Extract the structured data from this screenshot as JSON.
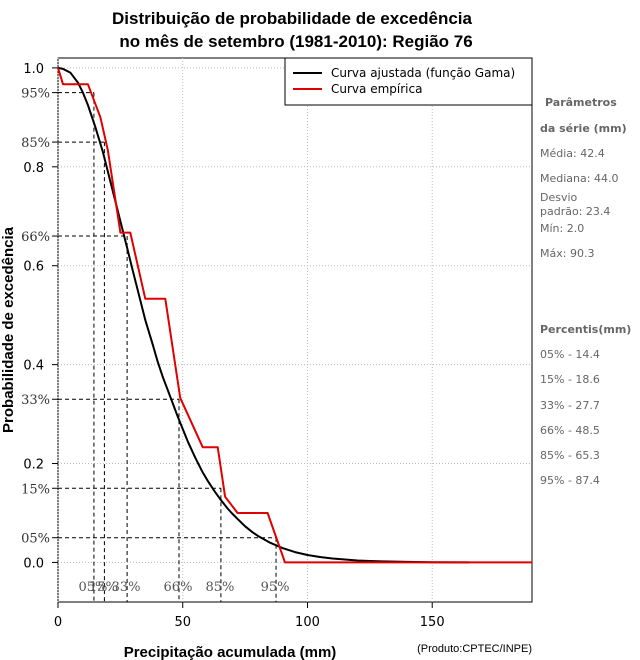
{
  "chart_data": {
    "type": "line",
    "title_line1": "Distribuição de probabilidade de excedência",
    "title_line2": "no mês de setembro (1981-2010): Região 76",
    "xlabel": "Precipitação acumulada (mm)",
    "ylabel": "Probabilidade de excedência",
    "credit": "(Produto:CPTEC/INPE)",
    "xlim": [
      0,
      190
    ],
    "ylim": [
      -0.08,
      1.02
    ],
    "x_ticks": [
      0,
      50,
      100,
      150
    ],
    "y_ticks": [
      0.0,
      0.2,
      0.4,
      0.6,
      0.8,
      1.0
    ],
    "y_tick_labels": [
      "0.0",
      "0.2",
      "0.4",
      "0.6",
      "0.8",
      "1.0"
    ],
    "percentile_y_marks": [
      {
        "label": "95%",
        "y": 0.95
      },
      {
        "label": "85%",
        "y": 0.85
      },
      {
        "label": "66%",
        "y": 0.66
      },
      {
        "label": "33%",
        "y": 0.33
      },
      {
        "label": "15%",
        "y": 0.15
      },
      {
        "label": "05%",
        "y": 0.05
      }
    ],
    "percentile_x_marks": [
      {
        "label": "05%",
        "prob": 0.95,
        "x": 14.4
      },
      {
        "label": "15%",
        "prob": 0.85,
        "x": 18.6
      },
      {
        "label": "33%",
        "prob": 0.66,
        "x": 27.7
      },
      {
        "label": "66%",
        "prob": 0.33,
        "x": 48.5
      },
      {
        "label": "85%",
        "prob": 0.15,
        "x": 65.3
      },
      {
        "label": "95%",
        "prob": 0.05,
        "x": 87.4
      }
    ],
    "series": [
      {
        "name": "Curva ajustada (função Gama)",
        "color": "#000000",
        "x": [
          0,
          2,
          5,
          8,
          10,
          12,
          15,
          18,
          20,
          22,
          25,
          28,
          30,
          33,
          35,
          38,
          40,
          42,
          45,
          48,
          50,
          52,
          55,
          58,
          60,
          63,
          65,
          68,
          70,
          73,
          75,
          78,
          80,
          85,
          90,
          95,
          100,
          105,
          110,
          115,
          120,
          125,
          130,
          140,
          150,
          165
        ],
        "y": [
          1.0,
          0.998,
          0.99,
          0.97,
          0.95,
          0.925,
          0.88,
          0.83,
          0.79,
          0.75,
          0.69,
          0.63,
          0.59,
          0.53,
          0.49,
          0.44,
          0.405,
          0.375,
          0.335,
          0.295,
          0.27,
          0.245,
          0.212,
          0.182,
          0.165,
          0.142,
          0.128,
          0.109,
          0.098,
          0.083,
          0.073,
          0.061,
          0.054,
          0.04,
          0.029,
          0.021,
          0.015,
          0.011,
          0.008,
          0.006,
          0.004,
          0.003,
          0.002,
          0.001,
          0.0005,
          0.0
        ]
      },
      {
        "name": "Curva empírica",
        "color": "#e00000",
        "x": [
          0,
          2,
          12,
          17,
          20,
          25,
          29,
          35,
          43,
          49,
          58,
          64,
          67,
          72,
          84,
          91,
          190
        ],
        "y": [
          1.0,
          0.967,
          0.967,
          0.9,
          0.833,
          0.667,
          0.667,
          0.533,
          0.533,
          0.333,
          0.233,
          0.233,
          0.133,
          0.1,
          0.1,
          0.0,
          0.0
        ]
      }
    ],
    "legend_position": "top-right",
    "grid": true
  },
  "side_panel": {
    "params_head_1": "Parâmetros",
    "params_head_2": "da série (mm)",
    "media": "Média: 42.4",
    "mediana": "Mediana: 44.0",
    "desvio_1": "Desvio",
    "desvio_2": "padrão: 23.4",
    "min": "Mín: 2.0",
    "max": "Máx: 90.3",
    "percentis_head": "Percentis(mm)",
    "percentis": [
      "05% - 14.4",
      "15% - 18.6",
      "33% - 27.7",
      "66% - 48.5",
      "85% - 65.3",
      "95% - 87.4"
    ]
  }
}
